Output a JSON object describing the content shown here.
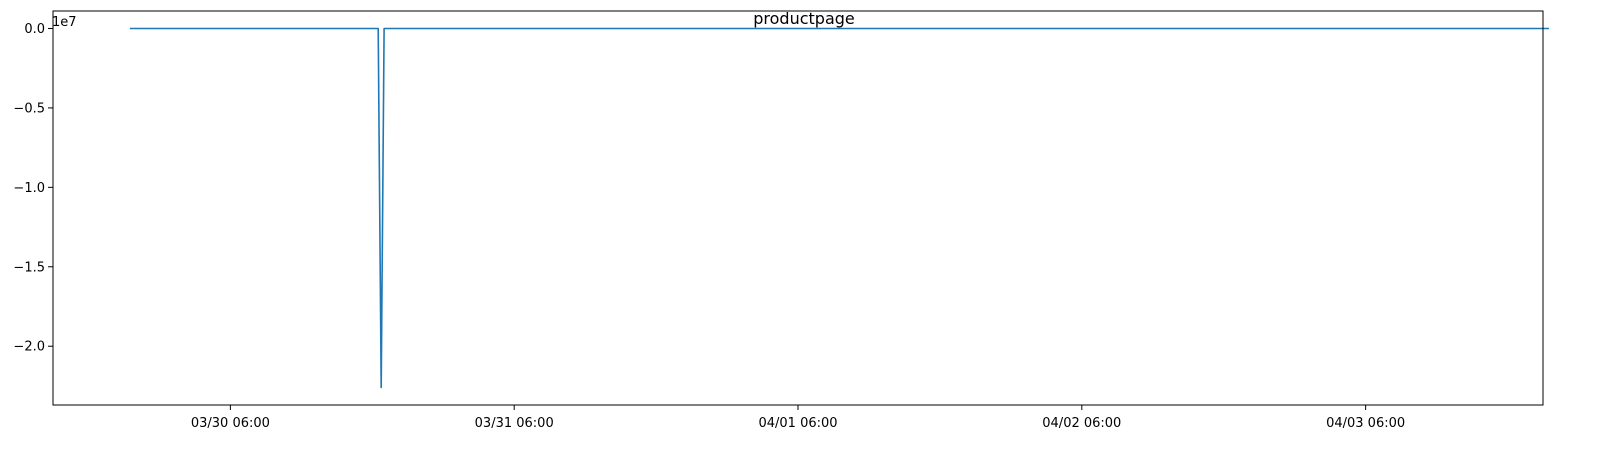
{
  "chart_data": {
    "type": "line",
    "title": "productpage",
    "xlabel": "",
    "ylabel": "",
    "y_offset_label": "1e7",
    "y_scale": 10000000,
    "xlim": [
      "2024-03-29T15:00",
      "2024-04-03T21:00"
    ],
    "ylim": [
      -2.37,
      0.11
    ],
    "x_ticks": [
      {
        "t": "2024-03-30T06:00",
        "label": "03/30 06:00"
      },
      {
        "t": "2024-03-31T06:00",
        "label": "03/31 06:00"
      },
      {
        "t": "2024-04-01T06:00",
        "label": "04/01 06:00"
      },
      {
        "t": "2024-04-02T06:00",
        "label": "04/02 06:00"
      },
      {
        "t": "2024-04-03T06:00",
        "label": "04/03 06:00"
      }
    ],
    "y_ticks": [
      {
        "v": 0.0,
        "label": "0.0"
      },
      {
        "v": -0.5,
        "label": "−0.5"
      },
      {
        "v": -1.0,
        "label": "−1.0"
      },
      {
        "v": -1.5,
        "label": "−1.5"
      },
      {
        "v": -2.0,
        "label": "−2.0"
      }
    ],
    "grid": false,
    "series": [
      {
        "color": "#1f77b4",
        "x": [
          "2024-03-29T21:30",
          "2024-03-30T18:30",
          "2024-03-30T18:45",
          "2024-03-30T19:00",
          "2024-04-03T21:30"
        ],
        "y": [
          0.0,
          0.0,
          -2.26,
          0.0,
          0.0
        ]
      }
    ]
  }
}
